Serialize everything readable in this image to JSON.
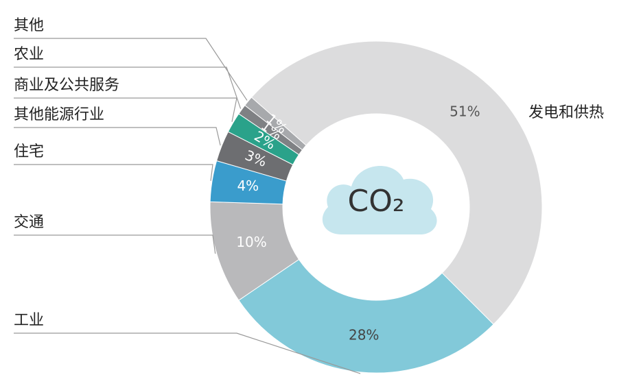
{
  "chart_data": {
    "type": "donut",
    "categories": [
      "发电和供热",
      "工业",
      "交通",
      "住宅",
      "其他能源行业",
      "商业及公共服务",
      "农业",
      "其他"
    ],
    "values": [
      51,
      28,
      10,
      4,
      3,
      2,
      1,
      1
    ],
    "value_labels": [
      "51%",
      "28%",
      "10%",
      "4%",
      "3%",
      "2%",
      "1%",
      "1%"
    ],
    "colors": [
      "#dcdcdd",
      "#82c9d9",
      "#b9b9bb",
      "#3a9ccc",
      "#6d6e71",
      "#2aa28a",
      "#7f8184",
      "#a7a9ac"
    ],
    "center_text": "CO₂"
  }
}
